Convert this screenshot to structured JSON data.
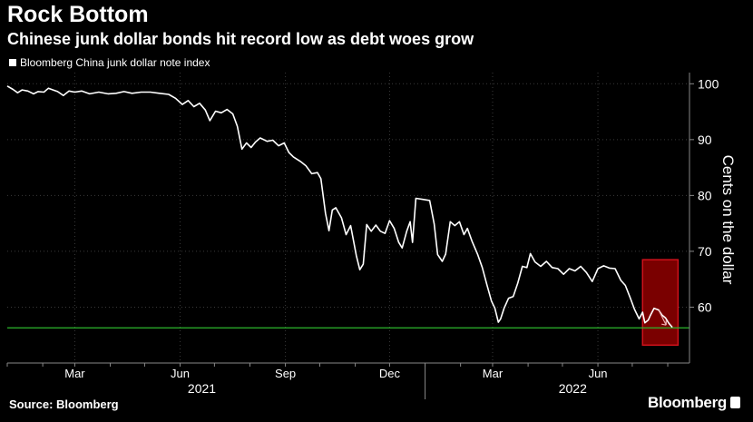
{
  "header": {
    "title": "Rock Bottom",
    "subtitle": "Chinese junk dollar bonds hit record low as debt woes grow"
  },
  "footer": {
    "source": "Source: Bloomberg",
    "logo": "Bloomberg"
  },
  "colors": {
    "background": "#000000",
    "line": "#ffffff",
    "reference_line": "#2db82d",
    "highlight_fill": "#7a0000",
    "highlight_stroke": "#d0121b"
  },
  "chart_data": {
    "type": "line",
    "title": "Rock Bottom",
    "subtitle": "Chinese junk dollar bonds hit record low as debt woes grow",
    "ylabel": "Cents on the dollar",
    "xlabel": "",
    "ylim": [
      50,
      102
    ],
    "yticks": [
      60,
      70,
      80,
      90,
      100
    ],
    "xlim": [
      "2021-01-01",
      "2022-08-20"
    ],
    "xticks": [
      {
        "label": "Mar",
        "date": "2021-03-01"
      },
      {
        "label": "Jun",
        "date": "2021-06-01"
      },
      {
        "label": "Sep",
        "date": "2021-09-01"
      },
      {
        "label": "Dec",
        "date": "2021-12-01"
      },
      {
        "label": "Mar",
        "date": "2022-03-01"
      },
      {
        "label": "Jun",
        "date": "2022-06-01"
      }
    ],
    "year_labels": [
      {
        "label": "2021",
        "date": "2021-06-20"
      },
      {
        "label": "2022",
        "date": "2022-05-10"
      }
    ],
    "grid": true,
    "legend": "top-left",
    "reference_line": {
      "y": 56.3
    },
    "highlight_box": {
      "x_start": "2022-07-10",
      "x_end": "2022-08-10",
      "y_start": 53.2,
      "y_end": 68.5
    },
    "series": [
      {
        "name": "Bloomberg China junk dollar note index",
        "points": [
          [
            "2021-01-01",
            99.6
          ],
          [
            "2021-01-06",
            99.0
          ],
          [
            "2021-01-10",
            98.4
          ],
          [
            "2021-01-14",
            98.9
          ],
          [
            "2021-01-19",
            98.7
          ],
          [
            "2021-01-24",
            98.2
          ],
          [
            "2021-01-28",
            98.6
          ],
          [
            "2021-02-02",
            98.5
          ],
          [
            "2021-02-06",
            99.2
          ],
          [
            "2021-02-10",
            98.9
          ],
          [
            "2021-02-14",
            98.6
          ],
          [
            "2021-02-19",
            97.9
          ],
          [
            "2021-02-24",
            98.7
          ],
          [
            "2021-03-01",
            98.5
          ],
          [
            "2021-03-07",
            98.7
          ],
          [
            "2021-03-14",
            98.2
          ],
          [
            "2021-03-22",
            98.5
          ],
          [
            "2021-03-30",
            98.2
          ],
          [
            "2021-04-06",
            98.3
          ],
          [
            "2021-04-13",
            98.6
          ],
          [
            "2021-04-20",
            98.3
          ],
          [
            "2021-04-28",
            98.5
          ],
          [
            "2021-05-06",
            98.5
          ],
          [
            "2021-05-14",
            98.3
          ],
          [
            "2021-05-22",
            98.1
          ],
          [
            "2021-05-28",
            97.4
          ],
          [
            "2021-06-03",
            96.3
          ],
          [
            "2021-06-08",
            97.0
          ],
          [
            "2021-06-13",
            95.9
          ],
          [
            "2021-06-18",
            96.5
          ],
          [
            "2021-06-23",
            95.3
          ],
          [
            "2021-06-27",
            93.4
          ],
          [
            "2021-07-02",
            95.1
          ],
          [
            "2021-07-07",
            94.8
          ],
          [
            "2021-07-12",
            95.4
          ],
          [
            "2021-07-17",
            94.6
          ],
          [
            "2021-07-21",
            92.4
          ],
          [
            "2021-07-25",
            88.3
          ],
          [
            "2021-07-29",
            89.4
          ],
          [
            "2021-08-02",
            88.6
          ],
          [
            "2021-08-06",
            89.6
          ],
          [
            "2021-08-10",
            90.3
          ],
          [
            "2021-08-16",
            89.7
          ],
          [
            "2021-08-21",
            89.9
          ],
          [
            "2021-08-26",
            88.9
          ],
          [
            "2021-08-31",
            89.4
          ],
          [
            "2021-09-04",
            87.7
          ],
          [
            "2021-09-08",
            86.9
          ],
          [
            "2021-09-14",
            86.1
          ],
          [
            "2021-09-19",
            85.3
          ],
          [
            "2021-09-24",
            83.9
          ],
          [
            "2021-09-29",
            84.1
          ],
          [
            "2021-10-02",
            83.0
          ],
          [
            "2021-10-06",
            76.8
          ],
          [
            "2021-10-09",
            73.7
          ],
          [
            "2021-10-12",
            77.4
          ],
          [
            "2021-10-15",
            77.8
          ],
          [
            "2021-10-20",
            76.0
          ],
          [
            "2021-10-24",
            73.0
          ],
          [
            "2021-10-28",
            74.6
          ],
          [
            "2021-11-02",
            69.2
          ],
          [
            "2021-11-05",
            66.7
          ],
          [
            "2021-11-08",
            67.7
          ],
          [
            "2021-11-11",
            74.8
          ],
          [
            "2021-11-15",
            73.6
          ],
          [
            "2021-11-19",
            74.7
          ],
          [
            "2021-11-23",
            73.6
          ],
          [
            "2021-11-27",
            73.2
          ],
          [
            "2021-12-01",
            75.5
          ],
          [
            "2021-12-05",
            74.1
          ],
          [
            "2021-12-09",
            71.6
          ],
          [
            "2021-12-12",
            70.6
          ],
          [
            "2021-12-16",
            73.6
          ],
          [
            "2021-12-19",
            75.3
          ],
          [
            "2021-12-21",
            71.6
          ],
          [
            "2021-12-24",
            79.5
          ],
          [
            "2021-12-30",
            79.3
          ],
          [
            "2022-01-05",
            79.1
          ],
          [
            "2022-01-09",
            74.9
          ],
          [
            "2022-01-12",
            69.4
          ],
          [
            "2022-01-16",
            68.2
          ],
          [
            "2022-01-19",
            69.5
          ],
          [
            "2022-01-23",
            75.3
          ],
          [
            "2022-01-27",
            74.6
          ],
          [
            "2022-01-31",
            75.3
          ],
          [
            "2022-02-04",
            73.0
          ],
          [
            "2022-02-07",
            74.1
          ],
          [
            "2022-02-11",
            71.8
          ],
          [
            "2022-02-16",
            69.4
          ],
          [
            "2022-02-20",
            67.1
          ],
          [
            "2022-02-24",
            64.0
          ],
          [
            "2022-02-28",
            61.1
          ],
          [
            "2022-03-03",
            59.8
          ],
          [
            "2022-03-06",
            57.3
          ],
          [
            "2022-03-08",
            57.9
          ],
          [
            "2022-03-11",
            59.8
          ],
          [
            "2022-03-15",
            61.6
          ],
          [
            "2022-03-19",
            61.9
          ],
          [
            "2022-03-23",
            64.3
          ],
          [
            "2022-03-27",
            67.3
          ],
          [
            "2022-03-31",
            67.1
          ],
          [
            "2022-04-03",
            69.6
          ],
          [
            "2022-04-07",
            68.1
          ],
          [
            "2022-04-12",
            67.3
          ],
          [
            "2022-04-17",
            68.2
          ],
          [
            "2022-04-22",
            67.1
          ],
          [
            "2022-04-27",
            66.9
          ],
          [
            "2022-05-02",
            65.9
          ],
          [
            "2022-05-07",
            66.9
          ],
          [
            "2022-05-12",
            66.5
          ],
          [
            "2022-05-17",
            67.3
          ],
          [
            "2022-05-22",
            66.2
          ],
          [
            "2022-05-27",
            64.6
          ],
          [
            "2022-06-01",
            66.9
          ],
          [
            "2022-06-06",
            67.4
          ],
          [
            "2022-06-11",
            67.0
          ],
          [
            "2022-06-16",
            66.9
          ],
          [
            "2022-06-21",
            64.8
          ],
          [
            "2022-06-25",
            63.9
          ],
          [
            "2022-06-29",
            61.8
          ],
          [
            "2022-07-03",
            59.6
          ],
          [
            "2022-07-07",
            57.9
          ],
          [
            "2022-07-10",
            59.1
          ],
          [
            "2022-07-12",
            57.2
          ],
          [
            "2022-07-15",
            57.7
          ],
          [
            "2022-07-17",
            58.6
          ],
          [
            "2022-07-20",
            59.8
          ],
          [
            "2022-07-24",
            59.5
          ],
          [
            "2022-07-27",
            58.6
          ],
          [
            "2022-07-30",
            58.1
          ],
          [
            "2022-08-02",
            57.1
          ],
          [
            "2022-08-05",
            56.4
          ]
        ]
      }
    ]
  }
}
